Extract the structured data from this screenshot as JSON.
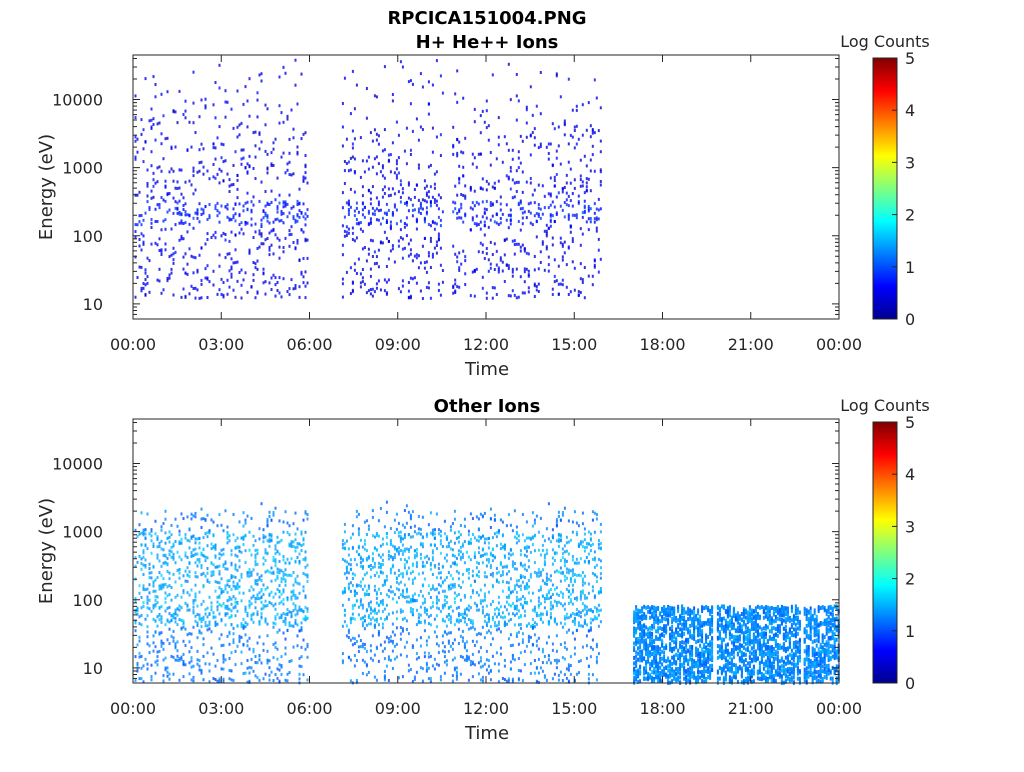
{
  "figure": {
    "filename_title": "RPCICA151004.PNG"
  },
  "colors": {
    "axis": "#262626",
    "background": "#ffffff",
    "band_dark": "#101a8a",
    "band_mid": "#2a45c8",
    "band_light": "#3aa0f0"
  },
  "chart_data": [
    {
      "type": "heatmap",
      "title": "H+ He++ Ions",
      "xlabel": "Time",
      "ylabel": "Energy (eV)",
      "x_tick_labels": [
        "00:00",
        "03:00",
        "06:00",
        "09:00",
        "12:00",
        "15:00",
        "18:00",
        "21:00",
        "00:00"
      ],
      "x_ticks_hours": [
        0,
        3,
        6,
        9,
        12,
        15,
        18,
        21,
        24
      ],
      "xlim_hours": [
        0,
        24
      ],
      "y_scale": "log",
      "y_tick_labels": [
        "10",
        "100",
        "1000",
        "10000"
      ],
      "y_ticks": [
        10,
        100,
        1000,
        10000
      ],
      "ylim": [
        6,
        45000
      ],
      "colorbar": {
        "label": "Log Counts",
        "tick_labels": [
          "0",
          "1",
          "2",
          "3",
          "4",
          "5"
        ],
        "range": [
          0,
          5
        ],
        "colormap": "jet"
      },
      "data_segments_hours": [
        [
          0.05,
          5.95
        ],
        [
          7.1,
          10.5
        ],
        [
          10.85,
          11.3
        ],
        [
          11.45,
          15.9
        ]
      ],
      "data_energy_range": [
        12,
        40000
      ],
      "dominant_band_eV": [
        140,
        320
      ],
      "typical_log_counts": 0.5
    },
    {
      "type": "heatmap",
      "title": "Other Ions",
      "xlabel": "Time",
      "ylabel": "Energy (eV)",
      "x_tick_labels": [
        "00:00",
        "03:00",
        "06:00",
        "09:00",
        "12:00",
        "15:00",
        "18:00",
        "21:00",
        "00:00"
      ],
      "x_ticks_hours": [
        0,
        3,
        6,
        9,
        12,
        15,
        18,
        21,
        24
      ],
      "xlim_hours": [
        0,
        24
      ],
      "y_scale": "log",
      "y_tick_labels": [
        "10",
        "100",
        "1000",
        "10000"
      ],
      "y_ticks": [
        10,
        100,
        1000,
        10000
      ],
      "ylim": [
        6,
        45000
      ],
      "colorbar": {
        "label": "Log Counts",
        "tick_labels": [
          "0",
          "1",
          "2",
          "3",
          "4",
          "5"
        ],
        "range": [
          0,
          5
        ],
        "colormap": "jet"
      },
      "data_segments_hours": [
        [
          0.05,
          5.95
        ],
        [
          7.1,
          15.9
        ],
        [
          17.0,
          19.7
        ],
        [
          19.85,
          22.7
        ],
        [
          22.8,
          24.0
        ]
      ],
      "data_energy_range": [
        6,
        3000
      ],
      "dominant_band_eV": [
        40,
        1000
      ],
      "low_energy_segments_max_eV": 80,
      "typical_log_counts": 1.2
    }
  ]
}
